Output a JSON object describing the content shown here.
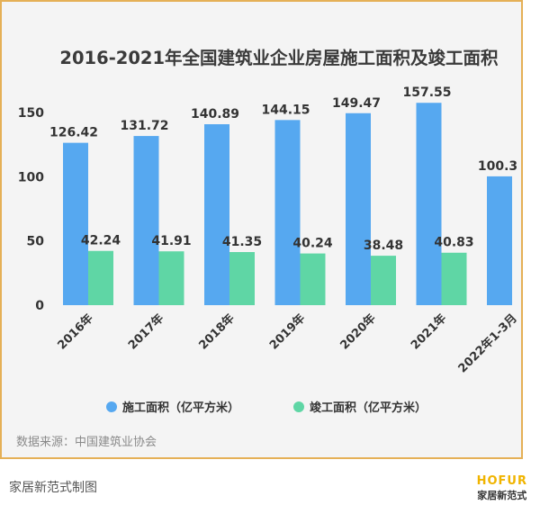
{
  "chart_data": {
    "type": "bar",
    "title": "2016-2021年全国建筑业企业房屋施工面积及竣工面积",
    "categories": [
      "2016年",
      "2017年",
      "2018年",
      "2019年",
      "2020年",
      "2021年",
      "2022年1-3月"
    ],
    "series": [
      {
        "name": "施工面积（亿平方米）",
        "color": "#56a8f0",
        "values": [
          126.42,
          131.72,
          140.89,
          144.15,
          149.47,
          157.55,
          100.3
        ]
      },
      {
        "name": "竣工面积（亿平方米）",
        "color": "#5fd6a5",
        "values": [
          42.24,
          41.91,
          41.35,
          40.24,
          38.48,
          40.83,
          null
        ]
      }
    ],
    "ylim": [
      0,
      170
    ],
    "yticks": [
      0,
      50,
      100,
      150
    ],
    "grid": false,
    "legend_position": "bottom"
  },
  "source": "数据来源：中国建筑业协会",
  "caption": "家居新范式制图",
  "brand": {
    "name": "HOFUR",
    "subtitle": "家居新范式"
  }
}
